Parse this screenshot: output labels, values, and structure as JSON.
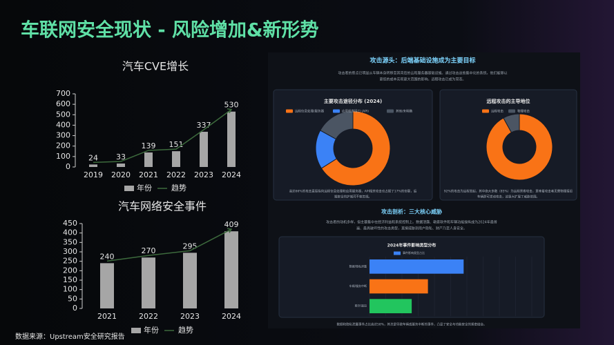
{
  "title": "车联网安全现状 - 风险增加&新形势",
  "source": "数据来源：Upstream安全研究报告",
  "panel": {
    "heading1": "攻击源头：后端基础设施成为主要目标",
    "text1": [
      "攻击者的焦点已明显从车辆本身转移至其背后的云和服务器基础设施。通过攻击这些集中化的系统，他们能够以",
      "更低的成本实现更大范围的影响。远程攻击已成为常态。"
    ],
    "heading2": "攻击剖析：三大核心威胁",
    "text2": [
      "攻击者的动机多样，但主要集中在经济利益和系统控制上。数据泄露、勒索软件和车辆功能操纵成为2024年最普",
      "遍、最具破坏性的攻击类型，直接威胁到用户隐私、财产乃至人身安全。"
    ]
  },
  "chart_data": [
    {
      "type": "bar",
      "title": "汽车CVE增长",
      "categories": [
        "2019",
        "2020",
        "2021",
        "2022",
        "2023",
        "2024"
      ],
      "series": [
        {
          "name": "年份",
          "color": "#a6a6a6",
          "values": [
            24,
            33,
            139,
            151,
            337,
            530
          ]
        }
      ],
      "trend": {
        "name": "趋势",
        "color": "#3d6b3d"
      },
      "ylim": [
        0,
        700
      ],
      "yticks": [
        0,
        100,
        200,
        300,
        400,
        500,
        600,
        700
      ]
    },
    {
      "type": "bar",
      "title": "汽车网络安全事件",
      "categories": [
        "2021",
        "2022",
        "2023",
        "2024"
      ],
      "series": [
        {
          "name": "年份",
          "color": "#a6a6a6",
          "values": [
            240,
            270,
            295,
            409
          ]
        }
      ],
      "trend": {
        "name": "趋势",
        "color": "#3d6b3d"
      },
      "ylim": [
        0,
        450
      ],
      "yticks": [
        0,
        50,
        100,
        150,
        200,
        250,
        300,
        350,
        400,
        450
      ]
    },
    {
      "type": "pie",
      "title": "主要攻击途径分布 (2024)",
      "categories": [
        "远程信息处理/服务器",
        "应用程序接口 (API)",
        "其他/未明确"
      ],
      "values": [
        66,
        17,
        17
      ],
      "colors": [
        "#f97316",
        "#3b82f6",
        "#4b5563"
      ],
      "caption": [
        "高达66%的攻击直接指向远程信息处理和应用服务器，API相关攻击也占据了17%的份额，后",
        "端安全的护城河不容忽视。"
      ]
    },
    {
      "type": "pie",
      "title": "远程攻击的主导地位",
      "categories": [
        "远程攻击",
        "物理攻击"
      ],
      "values": [
        92,
        8
      ],
      "colors": [
        "#f97316",
        "#4b5563"
      ],
      "caption": [
        "92%的攻击为远程发起，其中绝大多数（85%）为远程黑客攻击，意味着攻击者无需物理接近",
        "车辆即可发动攻击，这极大扩展了威胁范围。"
      ]
    },
    {
      "type": "hbar",
      "title": "2024年事件影响类型分布",
      "categories": [
        "数据/隐私泄露",
        "车辆/服务中断",
        "欺诈/盗窃"
      ],
      "series": [
        {
          "name": "事件影响类型占比",
          "color": "#3b82f6",
          "values": [
            58,
            36,
            26
          ]
        }
      ],
      "bar_colors": [
        "#3b82f6",
        "#f97316",
        "#22c55e"
      ],
      "xlim": [
        0,
        100
      ],
      "grid": true,
      "caption": [
        "数据和隐私泄露事件占比高达58%，其次是导致车辆或服务中断的事件，凸显了安全与功能安全的紧密结合。"
      ]
    }
  ]
}
